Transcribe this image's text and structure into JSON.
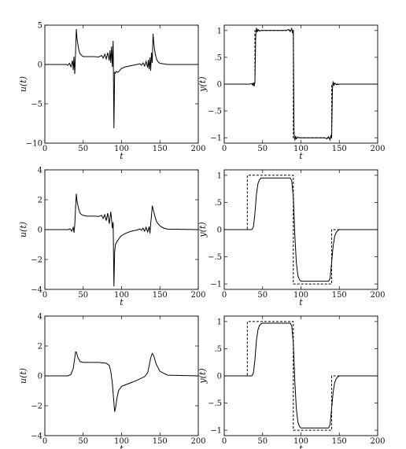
{
  "chart_data": [
    {
      "type": "line",
      "xlabel": "t",
      "ylabel": "u(t)",
      "xlim": [
        0,
        200
      ],
      "ylim": [
        -10,
        5
      ],
      "xticks": [
        0,
        50,
        100,
        150,
        200
      ],
      "yticks": [
        -10,
        -5,
        0,
        5
      ],
      "series": [
        {
          "style": "solid",
          "x": [
            0,
            28,
            30,
            32,
            34,
            36,
            37,
            38,
            39,
            40,
            41,
            42,
            43,
            44,
            45,
            46,
            48,
            50,
            55,
            60,
            65,
            70,
            74,
            76,
            78,
            80,
            82,
            84,
            85,
            86,
            87,
            88,
            89,
            90,
            91,
            92,
            93,
            94,
            95,
            96,
            98,
            100,
            105,
            110,
            115,
            120,
            124,
            126,
            128,
            130,
            132,
            134,
            135,
            136,
            137,
            138,
            139,
            140,
            141,
            142,
            143,
            144,
            145,
            146,
            148,
            150,
            160,
            200
          ],
          "y": [
            0,
            0,
            -0.1,
            0.15,
            -0.3,
            0.5,
            -0.7,
            1,
            -1.2,
            1.5,
            4.5,
            3.3,
            2.6,
            2,
            1.6,
            1.35,
            1.15,
            1,
            1,
            1,
            1,
            0.95,
            1.15,
            0.8,
            1.3,
            0.7,
            1.5,
            0.5,
            1.8,
            0.2,
            2.3,
            -0.3,
            3,
            -8.1,
            -1,
            -1.1,
            -0.9,
            -0.9,
            -1,
            -0.95,
            -0.7,
            -0.5,
            -0.3,
            -0.2,
            -0.1,
            0,
            0.1,
            -0.1,
            0.2,
            -0.2,
            0.4,
            -0.4,
            0.6,
            -0.6,
            0.9,
            -0.8,
            1.5,
            0.2,
            3.9,
            2.8,
            1.9,
            1.3,
            0.9,
            0.6,
            0.3,
            0.15,
            0,
            0
          ]
        }
      ]
    },
    {
      "type": "line",
      "xlabel": "t",
      "ylabel": "y(t)",
      "xlim": [
        0,
        200
      ],
      "ylim": [
        -1.1,
        1.1
      ],
      "xticks": [
        0,
        50,
        100,
        150,
        200
      ],
      "yticks": [
        -1,
        -0.5,
        0,
        0.5,
        1
      ],
      "series": [
        {
          "style": "dashed",
          "x": [
            0,
            40,
            40,
            90,
            90,
            140,
            140,
            200
          ],
          "y": [
            0,
            0,
            1,
            1,
            -1,
            -1,
            0,
            0
          ]
        },
        {
          "style": "solid",
          "x": [
            0,
            34,
            36,
            37,
            38,
            39,
            40,
            41,
            42,
            43,
            44,
            46,
            48,
            52,
            60,
            70,
            80,
            84,
            86,
            88,
            89,
            90,
            91,
            92,
            93,
            94,
            96,
            98,
            102,
            110,
            120,
            130,
            134,
            136,
            138,
            139,
            140,
            141,
            142,
            143,
            144,
            146,
            150,
            160,
            200
          ],
          "y": [
            0,
            0,
            0.01,
            -0.02,
            0.03,
            -0.04,
            0.05,
            0.9,
            1.05,
            0.97,
            1.02,
            0.99,
            1,
            1,
            1,
            1,
            1,
            1.02,
            0.98,
            1.04,
            0.95,
            1,
            -0.9,
            -1.05,
            -0.97,
            -1.02,
            -0.99,
            -1,
            -1,
            -1,
            -1,
            -1,
            -1.02,
            -0.98,
            -1.04,
            -0.95,
            -1,
            -0.1,
            0.05,
            -0.03,
            0.02,
            -0.01,
            0,
            0,
            0
          ]
        }
      ]
    },
    {
      "type": "line",
      "xlabel": "t",
      "ylabel": "u(t)",
      "xlim": [
        0,
        200
      ],
      "ylim": [
        -4,
        4
      ],
      "xticks": [
        0,
        50,
        100,
        150,
        200
      ],
      "yticks": [
        -4,
        -2,
        0,
        2,
        4
      ],
      "series": [
        {
          "style": "solid",
          "x": [
            0,
            30,
            33,
            35,
            37,
            38,
            39,
            40,
            41,
            42,
            44,
            46,
            48,
            50,
            55,
            60,
            65,
            70,
            74,
            76,
            78,
            80,
            82,
            84,
            86,
            88,
            89,
            90,
            91,
            92,
            94,
            96,
            98,
            100,
            105,
            110,
            115,
            120,
            124,
            126,
            128,
            130,
            132,
            134,
            136,
            137,
            138,
            139,
            140,
            142,
            144,
            146,
            150,
            155,
            160,
            200
          ],
          "y": [
            0,
            0,
            0.05,
            -0.1,
            0.15,
            -0.2,
            0.3,
            1.4,
            2.4,
            1.9,
            1.4,
            1.1,
            1,
            0.95,
            0.9,
            0.9,
            0.9,
            0.88,
            0.95,
            0.75,
            1,
            0.6,
            1.1,
            0.4,
            1.2,
            0.1,
            0.5,
            -3.8,
            -1.5,
            -1,
            -0.8,
            -0.65,
            -0.5,
            -0.4,
            -0.25,
            -0.15,
            -0.08,
            -0.03,
            0.05,
            -0.05,
            0.1,
            -0.1,
            0.15,
            -0.15,
            0.2,
            -0.25,
            0.4,
            0.9,
            1.6,
            1.2,
            0.8,
            0.5,
            0.25,
            0.1,
            0.03,
            0
          ]
        }
      ]
    },
    {
      "type": "line",
      "xlabel": "t",
      "ylabel": "y(t)",
      "xlim": [
        0,
        200
      ],
      "ylim": [
        -1.1,
        1.1
      ],
      "xticks": [
        0,
        50,
        100,
        150,
        200
      ],
      "yticks": [
        -1,
        -0.5,
        0,
        0.5,
        1
      ],
      "series": [
        {
          "style": "dashed",
          "x": [
            0,
            30,
            30,
            90,
            90,
            140,
            140,
            200
          ],
          "y": [
            0,
            0,
            1,
            1,
            -1,
            -1,
            0,
            0
          ]
        },
        {
          "style": "solid",
          "x": [
            0,
            36,
            38,
            40,
            42,
            44,
            46,
            48,
            50,
            55,
            60,
            70,
            80,
            86,
            88,
            90,
            92,
            94,
            96,
            98,
            100,
            105,
            110,
            120,
            130,
            136,
            138,
            140,
            142,
            144,
            146,
            148,
            150,
            155,
            200
          ],
          "y": [
            0,
            0,
            0.05,
            0.3,
            0.65,
            0.85,
            0.92,
            0.95,
            0.95,
            0.95,
            0.95,
            0.95,
            0.95,
            0.95,
            0.9,
            0.6,
            -0.1,
            -0.6,
            -0.85,
            -0.92,
            -0.95,
            -0.95,
            -0.95,
            -0.95,
            -0.95,
            -0.95,
            -0.9,
            -0.6,
            -0.3,
            -0.12,
            -0.05,
            -0.02,
            0,
            0,
            0
          ]
        }
      ]
    },
    {
      "type": "line",
      "xlabel": "t",
      "ylabel": "u(t)",
      "xlim": [
        0,
        200
      ],
      "ylim": [
        -4,
        4
      ],
      "xticks": [
        0,
        50,
        100,
        150,
        200
      ],
      "yticks": [
        -4,
        -2,
        0,
        2,
        4
      ],
      "series": [
        {
          "style": "solid",
          "x": [
            0,
            30,
            34,
            37,
            39,
            40,
            41,
            43,
            46,
            50,
            60,
            70,
            80,
            84,
            86,
            88,
            90,
            91,
            92,
            94,
            96,
            100,
            105,
            110,
            120,
            130,
            134,
            136,
            138,
            140,
            142,
            145,
            150,
            160,
            200
          ],
          "y": [
            0,
            0,
            0.1,
            0.5,
            1.2,
            1.6,
            1.6,
            1.25,
            0.95,
            0.9,
            0.9,
            0.9,
            0.85,
            0.7,
            0.3,
            -0.5,
            -1.8,
            -2.4,
            -2.2,
            -1.5,
            -1.0,
            -0.7,
            -0.6,
            -0.5,
            -0.3,
            -0.05,
            0.2,
            0.7,
            1.2,
            1.5,
            1.35,
            0.8,
            0.3,
            0.05,
            0
          ]
        }
      ]
    },
    {
      "type": "line",
      "xlabel": "t",
      "ylabel": "y(t)",
      "xlim": [
        0,
        200
      ],
      "ylim": [
        -1.1,
        1.1
      ],
      "xticks": [
        0,
        50,
        100,
        150,
        200
      ],
      "yticks": [
        -1,
        -0.5,
        0,
        0.5,
        1
      ],
      "series": [
        {
          "style": "dashed",
          "x": [
            0,
            30,
            30,
            90,
            90,
            140,
            140,
            200
          ],
          "y": [
            0,
            0,
            1,
            1,
            -1,
            -1,
            0,
            0
          ]
        },
        {
          "style": "solid",
          "x": [
            0,
            36,
            38,
            40,
            42,
            44,
            46,
            48,
            50,
            60,
            70,
            80,
            86,
            88,
            90,
            92,
            94,
            96,
            98,
            100,
            110,
            120,
            130,
            136,
            138,
            140,
            142,
            144,
            146,
            148,
            150,
            160,
            200
          ],
          "y": [
            0,
            0,
            0.05,
            0.3,
            0.65,
            0.85,
            0.93,
            0.96,
            0.97,
            0.97,
            0.97,
            0.97,
            0.97,
            0.92,
            0.6,
            -0.1,
            -0.6,
            -0.85,
            -0.93,
            -0.96,
            -0.96,
            -0.96,
            -0.96,
            -0.96,
            -0.9,
            -0.6,
            -0.3,
            -0.12,
            -0.05,
            -0.02,
            0,
            0,
            0
          ]
        }
      ]
    }
  ]
}
